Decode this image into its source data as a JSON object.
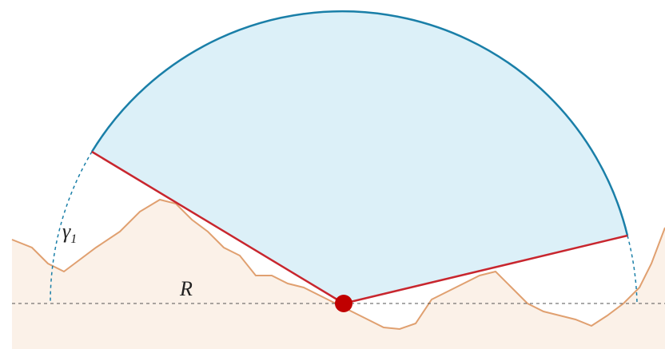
{
  "labels": {
    "angle": {
      "symbol": "γ",
      "subscript": "1"
    },
    "radius": "R"
  }
}
